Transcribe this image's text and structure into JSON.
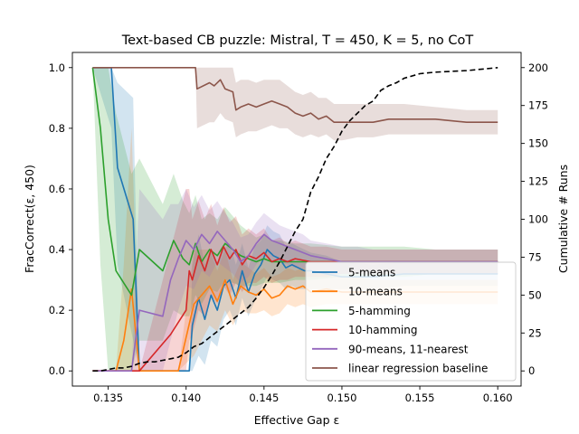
{
  "chart_data": {
    "type": "line",
    "title": "Text-based CB puzzle: Mistral, T = 450, K = 5, no CoT",
    "xlabel": "Effective Gap ε",
    "ylabel": "FracCorrect(ε, 450)",
    "y2label": "Cumulative # Runs",
    "xlim": [
      0.1327,
      0.1615
    ],
    "ylim": [
      -0.05,
      1.05
    ],
    "y2lim": [
      -10,
      210
    ],
    "xticks": [
      0.135,
      0.14,
      0.145,
      0.15,
      0.155,
      0.16
    ],
    "xtick_labels": [
      "0.135",
      "0.140",
      "0.145",
      "0.150",
      "0.155",
      "0.160"
    ],
    "yticks": [
      0.0,
      0.2,
      0.4,
      0.6,
      0.8,
      1.0
    ],
    "ytick_labels": [
      "0.0",
      "0.2",
      "0.4",
      "0.6",
      "0.8",
      "1.0"
    ],
    "y2ticks": [
      0,
      25,
      50,
      75,
      100,
      125,
      150,
      175,
      200
    ],
    "y2tick_labels": [
      "0",
      "25",
      "50",
      "75",
      "100",
      "125",
      "150",
      "175",
      "200"
    ],
    "legend_position": "lower-right",
    "series": [
      {
        "name": "5-means",
        "color": "#1f77b4",
        "x": [
          0.134,
          0.1352,
          0.1356,
          0.1366,
          0.137,
          0.1385,
          0.1395,
          0.1402,
          0.1404,
          0.1408,
          0.1412,
          0.1416,
          0.142,
          0.1424,
          0.1428,
          0.1432,
          0.1436,
          0.144,
          0.1444,
          0.1448,
          0.1452,
          0.1456,
          0.146,
          0.1464,
          0.1468,
          0.1472,
          0.1476,
          0.148,
          0.149,
          0.15,
          0.152,
          0.154,
          0.156,
          0.158,
          0.16
        ],
        "y": [
          1.0,
          1.0,
          0.67,
          0.5,
          0.0,
          0.0,
          0.0,
          0.0,
          0.15,
          0.24,
          0.17,
          0.25,
          0.2,
          0.28,
          0.3,
          0.24,
          0.33,
          0.26,
          0.32,
          0.35,
          0.4,
          0.38,
          0.37,
          0.34,
          0.35,
          0.34,
          0.33,
          0.33,
          0.32,
          0.31,
          0.31,
          0.32,
          0.32,
          0.32,
          0.32
        ],
        "band_lo": [
          1.0,
          0.8,
          0.35,
          0.1,
          0.0,
          0.0,
          0.0,
          0.0,
          0.0,
          0.05,
          0.02,
          0.1,
          0.08,
          0.17,
          0.2,
          0.15,
          0.24,
          0.18,
          0.23,
          0.27,
          0.31,
          0.3,
          0.29,
          0.27,
          0.28,
          0.27,
          0.27,
          0.27,
          0.27,
          0.27,
          0.27,
          0.28,
          0.28,
          0.28,
          0.28
        ],
        "band_hi": [
          1.0,
          1.0,
          0.95,
          0.9,
          0.0,
          0.0,
          0.0,
          0.0,
          0.35,
          0.45,
          0.35,
          0.4,
          0.35,
          0.4,
          0.42,
          0.35,
          0.42,
          0.34,
          0.41,
          0.43,
          0.48,
          0.46,
          0.45,
          0.41,
          0.42,
          0.41,
          0.4,
          0.39,
          0.38,
          0.36,
          0.35,
          0.36,
          0.36,
          0.36,
          0.36
        ]
      },
      {
        "name": "10-means",
        "color": "#ff7f0e",
        "x": [
          0.134,
          0.1355,
          0.136,
          0.1365,
          0.137,
          0.138,
          0.1395,
          0.1405,
          0.141,
          0.1415,
          0.142,
          0.1425,
          0.143,
          0.1435,
          0.144,
          0.1445,
          0.145,
          0.1455,
          0.146,
          0.1465,
          0.147,
          0.1475,
          0.148,
          0.149,
          0.15,
          0.151,
          0.152,
          0.154,
          0.156,
          0.158,
          0.16
        ],
        "y": [
          0.0,
          0.0,
          0.1,
          0.27,
          0.0,
          0.0,
          0.0,
          0.22,
          0.25,
          0.28,
          0.23,
          0.3,
          0.22,
          0.28,
          0.26,
          0.25,
          0.27,
          0.24,
          0.25,
          0.28,
          0.27,
          0.28,
          0.26,
          0.27,
          0.26,
          0.26,
          0.26,
          0.26,
          0.26,
          0.26,
          0.26
        ],
        "band_lo": [
          0.0,
          0.0,
          0.0,
          0.0,
          0.0,
          0.0,
          0.0,
          0.05,
          0.1,
          0.15,
          0.13,
          0.2,
          0.15,
          0.2,
          0.19,
          0.19,
          0.2,
          0.18,
          0.19,
          0.22,
          0.21,
          0.22,
          0.21,
          0.22,
          0.22,
          0.22,
          0.22,
          0.22,
          0.22,
          0.22,
          0.22
        ],
        "band_hi": [
          0.0,
          0.0,
          0.35,
          0.8,
          0.0,
          0.0,
          0.0,
          0.4,
          0.4,
          0.4,
          0.33,
          0.4,
          0.3,
          0.36,
          0.34,
          0.32,
          0.34,
          0.31,
          0.32,
          0.34,
          0.33,
          0.34,
          0.32,
          0.32,
          0.31,
          0.31,
          0.3,
          0.3,
          0.3,
          0.3,
          0.3
        ]
      },
      {
        "name": "5-hamming",
        "color": "#2ca02c",
        "x": [
          0.134,
          0.1345,
          0.135,
          0.1355,
          0.1365,
          0.137,
          0.1385,
          0.1392,
          0.1398,
          0.1402,
          0.1406,
          0.141,
          0.1415,
          0.142,
          0.1425,
          0.143,
          0.1435,
          0.144,
          0.1445,
          0.145,
          0.1455,
          0.146,
          0.147,
          0.148,
          0.15,
          0.152,
          0.154,
          0.156,
          0.158,
          0.16
        ],
        "y": [
          1.0,
          0.8,
          0.5,
          0.33,
          0.25,
          0.4,
          0.33,
          0.43,
          0.37,
          0.35,
          0.42,
          0.36,
          0.4,
          0.38,
          0.42,
          0.4,
          0.38,
          0.37,
          0.36,
          0.37,
          0.36,
          0.36,
          0.36,
          0.36,
          0.36,
          0.36,
          0.36,
          0.36,
          0.36,
          0.36
        ],
        "band_lo": [
          1.0,
          0.35,
          0.0,
          0.0,
          0.0,
          0.1,
          0.1,
          0.2,
          0.18,
          0.18,
          0.25,
          0.22,
          0.27,
          0.26,
          0.3,
          0.29,
          0.28,
          0.28,
          0.28,
          0.29,
          0.29,
          0.29,
          0.3,
          0.3,
          0.31,
          0.31,
          0.31,
          0.32,
          0.32,
          0.32
        ],
        "band_hi": [
          1.0,
          1.0,
          1.0,
          0.85,
          0.65,
          0.7,
          0.55,
          0.65,
          0.56,
          0.52,
          0.58,
          0.5,
          0.52,
          0.5,
          0.54,
          0.51,
          0.48,
          0.46,
          0.44,
          0.45,
          0.43,
          0.43,
          0.42,
          0.42,
          0.41,
          0.41,
          0.41,
          0.4,
          0.4,
          0.4
        ]
      },
      {
        "name": "10-hamming",
        "color": "#d62728",
        "x": [
          0.134,
          0.136,
          0.137,
          0.139,
          0.14,
          0.1402,
          0.1404,
          0.1408,
          0.1412,
          0.1416,
          0.142,
          0.1424,
          0.1428,
          0.1432,
          0.1436,
          0.144,
          0.1445,
          0.145,
          0.1455,
          0.146,
          0.1465,
          0.147,
          0.148,
          0.149,
          0.15,
          0.152,
          0.154,
          0.156,
          0.158,
          0.16
        ],
        "y": [
          0.0,
          0.0,
          0.0,
          0.12,
          0.2,
          0.33,
          0.3,
          0.38,
          0.33,
          0.4,
          0.35,
          0.41,
          0.37,
          0.4,
          0.35,
          0.38,
          0.37,
          0.39,
          0.36,
          0.37,
          0.36,
          0.37,
          0.36,
          0.36,
          0.36,
          0.36,
          0.36,
          0.36,
          0.36,
          0.36
        ],
        "band_lo": [
          0.0,
          0.0,
          0.0,
          0.0,
          0.0,
          0.1,
          0.12,
          0.2,
          0.18,
          0.25,
          0.22,
          0.28,
          0.25,
          0.29,
          0.26,
          0.29,
          0.29,
          0.31,
          0.29,
          0.3,
          0.3,
          0.31,
          0.31,
          0.31,
          0.32,
          0.32,
          0.32,
          0.32,
          0.32,
          0.32
        ],
        "band_hi": [
          0.0,
          0.0,
          0.0,
          0.4,
          0.6,
          0.6,
          0.5,
          0.56,
          0.5,
          0.55,
          0.48,
          0.54,
          0.49,
          0.51,
          0.45,
          0.47,
          0.45,
          0.47,
          0.43,
          0.44,
          0.42,
          0.43,
          0.41,
          0.41,
          0.4,
          0.4,
          0.4,
          0.4,
          0.4,
          0.4
        ]
      },
      {
        "name": "90-means, 11-nearest",
        "color": "#9467bd",
        "x": [
          0.134,
          0.1365,
          0.137,
          0.1385,
          0.139,
          0.1395,
          0.14,
          0.1405,
          0.141,
          0.1415,
          0.142,
          0.1425,
          0.143,
          0.1435,
          0.144,
          0.1445,
          0.145,
          0.1455,
          0.146,
          0.1465,
          0.147,
          0.1475,
          0.148,
          0.149,
          0.15,
          0.151,
          0.152,
          0.154,
          0.156,
          0.158,
          0.16
        ],
        "y": [
          0.0,
          0.0,
          0.2,
          0.18,
          0.3,
          0.37,
          0.43,
          0.4,
          0.45,
          0.42,
          0.46,
          0.43,
          0.4,
          0.36,
          0.38,
          0.42,
          0.45,
          0.43,
          0.42,
          0.41,
          0.4,
          0.39,
          0.38,
          0.37,
          0.36,
          0.36,
          0.36,
          0.36,
          0.36,
          0.36,
          0.36
        ],
        "band_lo": [
          0.0,
          0.0,
          0.0,
          0.0,
          0.1,
          0.2,
          0.28,
          0.27,
          0.33,
          0.31,
          0.36,
          0.34,
          0.32,
          0.29,
          0.31,
          0.35,
          0.38,
          0.36,
          0.36,
          0.35,
          0.34,
          0.34,
          0.33,
          0.32,
          0.32,
          0.32,
          0.32,
          0.32,
          0.32,
          0.32,
          0.32
        ],
        "band_hi": [
          0.0,
          0.0,
          0.6,
          0.5,
          0.55,
          0.55,
          0.6,
          0.54,
          0.58,
          0.53,
          0.56,
          0.52,
          0.49,
          0.44,
          0.45,
          0.49,
          0.52,
          0.5,
          0.48,
          0.47,
          0.46,
          0.45,
          0.43,
          0.42,
          0.41,
          0.41,
          0.4,
          0.4,
          0.4,
          0.4,
          0.4
        ]
      },
      {
        "name": "linear regression baseline",
        "color": "#8c564b",
        "x": [
          0.134,
          0.1406,
          0.1407,
          0.1415,
          0.1418,
          0.1422,
          0.1425,
          0.143,
          0.1432,
          0.1435,
          0.144,
          0.1445,
          0.145,
          0.1455,
          0.146,
          0.1465,
          0.147,
          0.1475,
          0.148,
          0.1485,
          0.149,
          0.1495,
          0.15,
          0.151,
          0.152,
          0.153,
          0.154,
          0.156,
          0.158,
          0.16
        ],
        "y": [
          1.0,
          1.0,
          0.93,
          0.95,
          0.94,
          0.96,
          0.93,
          0.92,
          0.86,
          0.87,
          0.88,
          0.87,
          0.88,
          0.89,
          0.88,
          0.87,
          0.85,
          0.84,
          0.85,
          0.83,
          0.84,
          0.82,
          0.82,
          0.82,
          0.82,
          0.83,
          0.83,
          0.83,
          0.82,
          0.82
        ],
        "band_lo": [
          1.0,
          1.0,
          0.8,
          0.82,
          0.82,
          0.85,
          0.83,
          0.82,
          0.77,
          0.78,
          0.79,
          0.79,
          0.8,
          0.81,
          0.8,
          0.8,
          0.78,
          0.77,
          0.78,
          0.77,
          0.78,
          0.76,
          0.76,
          0.77,
          0.77,
          0.78,
          0.78,
          0.78,
          0.78,
          0.78
        ],
        "band_hi": [
          1.0,
          1.0,
          1.0,
          1.0,
          1.0,
          1.0,
          1.0,
          1.0,
          0.95,
          0.96,
          0.96,
          0.95,
          0.96,
          0.96,
          0.96,
          0.94,
          0.92,
          0.91,
          0.92,
          0.9,
          0.9,
          0.88,
          0.88,
          0.88,
          0.88,
          0.88,
          0.88,
          0.87,
          0.86,
          0.86
        ]
      }
    ],
    "cumulative_runs": {
      "name": "Cumulative # Runs",
      "color": "#000000",
      "style": "dashed",
      "x": [
        0.134,
        0.1345,
        0.135,
        0.1355,
        0.136,
        0.1365,
        0.137,
        0.1375,
        0.138,
        0.1385,
        0.139,
        0.1395,
        0.14,
        0.1405,
        0.141,
        0.1415,
        0.142,
        0.1425,
        0.143,
        0.1435,
        0.144,
        0.1445,
        0.145,
        0.1455,
        0.146,
        0.1465,
        0.147,
        0.1475,
        0.148,
        0.1485,
        0.149,
        0.1495,
        0.15,
        0.1505,
        0.151,
        0.1515,
        0.152,
        0.1525,
        0.153,
        0.1535,
        0.154,
        0.155,
        0.156,
        0.158,
        0.16
      ],
      "y": [
        0,
        0,
        1,
        2,
        2,
        3,
        5,
        6,
        6,
        7,
        8,
        9,
        12,
        16,
        18,
        22,
        26,
        30,
        34,
        38,
        42,
        48,
        55,
        63,
        72,
        82,
        92,
        100,
        118,
        128,
        140,
        148,
        158,
        165,
        170,
        175,
        178,
        185,
        188,
        190,
        193,
        196,
        197,
        198,
        200
      ]
    }
  }
}
